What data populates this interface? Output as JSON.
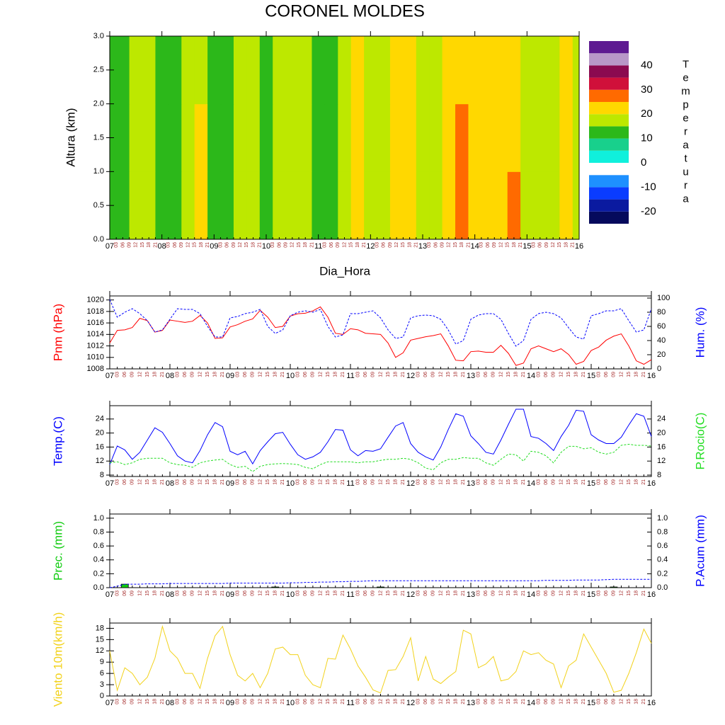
{
  "time_axis": {
    "xlim": [
      0,
      216
    ],
    "x": [
      0,
      3,
      6,
      9,
      12,
      15,
      18,
      21,
      24,
      27,
      30,
      33,
      36,
      39,
      42,
      45,
      48,
      51,
      54,
      57,
      60,
      63,
      66,
      69,
      72,
      75,
      78,
      81,
      84,
      87,
      90,
      93,
      96,
      99,
      102,
      105,
      108,
      111,
      114,
      117,
      120,
      123,
      126,
      129,
      132,
      135,
      138,
      141,
      144,
      147,
      150,
      153,
      156,
      159,
      162,
      165,
      168,
      171,
      174,
      177,
      180,
      183,
      186,
      189,
      192,
      195,
      198,
      201,
      204,
      207,
      210,
      213,
      216
    ],
    "xticks": [
      {
        "value": 0,
        "label": "07"
      },
      {
        "value": 24,
        "label": "08"
      },
      {
        "value": 48,
        "label": "09"
      },
      {
        "value": 72,
        "label": "10"
      },
      {
        "value": 96,
        "label": "11"
      },
      {
        "value": 120,
        "label": "12"
      },
      {
        "value": 144,
        "label": "13"
      },
      {
        "value": 168,
        "label": "14"
      },
      {
        "value": 192,
        "label": "15"
      },
      {
        "value": 216,
        "label": "16"
      }
    ],
    "minor_ticks": [
      {
        "value": 3,
        "label": "03"
      },
      {
        "value": 6,
        "label": "06"
      },
      {
        "value": 9,
        "label": "09"
      },
      {
        "value": 12,
        "label": "12"
      },
      {
        "value": 15,
        "label": "15"
      },
      {
        "value": 18,
        "label": "18"
      },
      {
        "value": 21,
        "label": "21"
      }
    ]
  },
  "chart_data": [
    {
      "type": "contour",
      "title": "CORONEL MOLDES",
      "xlabel": "Dia_Hora",
      "ylabel": "Altura (km)",
      "x": [
        0,
        6,
        12,
        18,
        24,
        30,
        36,
        42,
        48,
        54,
        60,
        66,
        72,
        78,
        84,
        90,
        96,
        102,
        108,
        114,
        120,
        126,
        132,
        138,
        144,
        150,
        156,
        162,
        168,
        174,
        180,
        186,
        192,
        198,
        204,
        210,
        216
      ],
      "y": [
        0.5,
        1.5,
        2.5
      ],
      "z": [
        [
          12,
          13,
          17,
          18,
          13,
          12,
          17,
          21,
          14,
          12,
          16,
          18,
          12,
          16,
          18,
          19,
          14,
          12,
          17,
          21,
          18,
          17,
          21,
          22,
          18,
          19,
          22,
          27,
          23,
          21,
          22,
          26,
          18,
          17,
          19,
          22,
          17
        ],
        [
          12,
          13,
          16.5,
          17.5,
          13,
          12,
          17,
          20.5,
          13.5,
          12,
          16,
          17.5,
          12,
          15.5,
          17.5,
          18,
          13.5,
          12,
          17,
          21,
          18,
          17,
          21,
          21.5,
          17.5,
          19,
          22,
          25.5,
          22,
          21,
          21.5,
          24,
          18,
          17,
          19,
          21,
          17
        ],
        [
          12,
          14,
          16,
          17,
          12.5,
          12,
          16.5,
          19,
          13,
          12,
          15.5,
          17,
          12,
          15,
          17,
          17.5,
          13,
          12.5,
          17,
          20,
          17.5,
          17,
          21,
          21,
          17.5,
          19,
          22,
          23,
          21.5,
          21,
          21,
          22,
          18,
          17,
          19,
          20.5,
          17
        ]
      ],
      "ylim": [
        0,
        3
      ],
      "yticks": [
        {
          "value": 0,
          "label": "0.0"
        },
        {
          "value": 0.5,
          "label": "0.5"
        },
        {
          "value": 1,
          "label": "1.0"
        },
        {
          "value": 1.5,
          "label": "1.5"
        },
        {
          "value": 2,
          "label": "2.0"
        },
        {
          "value": 2.5,
          "label": "2.5"
        },
        {
          "value": 3,
          "label": "3.0"
        }
      ],
      "levels": [
        -25,
        -20,
        -15,
        -10,
        -5,
        0,
        5,
        10,
        15,
        20,
        25,
        30,
        35,
        40,
        45,
        50
      ],
      "colors": [
        "#050a5c",
        "#0a1aa0",
        "#0a3cff",
        "#1e90ff",
        "#ffffff",
        "#10f0dc",
        "#18d08c",
        "#2cb81a",
        "#bde800",
        "#ffd800",
        "#ff6a00",
        "#d0103a",
        "#8b0a50",
        "#b898c8",
        "#5e1a91"
      ],
      "colorbar_ticks": [
        -20,
        -10,
        0,
        10,
        20,
        30,
        40
      ],
      "colorbar_label": "Temperatura"
    },
    {
      "type": "line",
      "ylim": [
        1008,
        1020.7
      ],
      "yticks": [
        1008,
        1010,
        1012,
        1014,
        1016,
        1018,
        1020
      ],
      "y2lim": [
        0,
        103
      ],
      "y2ticks": [
        0,
        20,
        40,
        60,
        80,
        100
      ],
      "series": [
        {
          "name": "Pnm (hPa)",
          "color": "#ff0000",
          "values": [
            1012.5,
            1014.7,
            1014.8,
            1015.2,
            1016.8,
            1016.4,
            1014.4,
            1014.7,
            1016.5,
            1016.3,
            1016.1,
            1016.3,
            1017.3,
            1016,
            1013.3,
            1013.4,
            1015.3,
            1015.7,
            1016.3,
            1016.7,
            1018.2,
            1017,
            1015.2,
            1015.4,
            1017.2,
            1017.6,
            1017.7,
            1018.1,
            1018.8,
            1017,
            1014.2,
            1014,
            1015,
            1014.8,
            1014.2,
            1014.1,
            1014,
            1012.5,
            1010,
            1010.8,
            1013,
            1013.3,
            1013.6,
            1013.8,
            1014.1,
            1012,
            1009.5,
            1009.4,
            1011,
            1011.1,
            1010.9,
            1010.9,
            1012.1,
            1010.7,
            1008.6,
            1009,
            1011.5,
            1012,
            1011.5,
            1011,
            1011.5,
            1010.5,
            1008.8,
            1009.3,
            1011.2,
            1011.8,
            1013,
            1013.7,
            1014.1,
            1012,
            1009.4,
            1008.8,
            1009.6
          ]
        },
        {
          "name": "Hum. (%)",
          "color": "#0000ff",
          "dash": true,
          "axis": "y2",
          "values": [
            98,
            73,
            80,
            85,
            78,
            68,
            52,
            55,
            70,
            85,
            84,
            84,
            78,
            60,
            45,
            45,
            72,
            74,
            78,
            80,
            84,
            60,
            50,
            55,
            75,
            80,
            82,
            80,
            84,
            60,
            45,
            48,
            78,
            78,
            80,
            82,
            72,
            55,
            43,
            45,
            72,
            75,
            76,
            75,
            70,
            55,
            35,
            40,
            70,
            76,
            78,
            78,
            70,
            50,
            32,
            40,
            70,
            78,
            80,
            78,
            72,
            58,
            45,
            42,
            75,
            78,
            82,
            82,
            85,
            68,
            52,
            55,
            85
          ]
        }
      ]
    },
    {
      "type": "line",
      "ylim": [
        7.6,
        27.8
      ],
      "yticks": [
        8,
        12,
        16,
        20,
        24
      ],
      "y2lim": [
        7.6,
        27.8
      ],
      "y2ticks": [
        8,
        12,
        16,
        20,
        24
      ],
      "series": [
        {
          "name": "Temp.(C)",
          "color": "#0000ff",
          "values": [
            11,
            16.3,
            15.2,
            12.5,
            14.5,
            18,
            21.5,
            20.2,
            17,
            13.5,
            12,
            11.5,
            15,
            19.5,
            23,
            21.8,
            14.8,
            13.8,
            14.8,
            11.2,
            15,
            17.5,
            19.8,
            20.2,
            16.8,
            13.8,
            12.5,
            13.2,
            14.5,
            17.5,
            21,
            20.8,
            15.2,
            13.5,
            15,
            14.8,
            15.5,
            18.8,
            22,
            23,
            17,
            14.5,
            13.2,
            12.3,
            16,
            21,
            25.5,
            24.8,
            19.2,
            17,
            14.5,
            14,
            18,
            22.5,
            26.8,
            26.8,
            19,
            18.5,
            17,
            15,
            19,
            22.2,
            26.5,
            26.2,
            19.5,
            18,
            17,
            17,
            18.8,
            22.3,
            25.5,
            24.8,
            19
          ]
        },
        {
          "name": "P.Rocio(C)",
          "color": "#22dd22",
          "dash": true,
          "axis": "y2",
          "values": [
            11.5,
            11.8,
            11,
            11.5,
            12.5,
            12.8,
            12.8,
            12.8,
            11.5,
            11,
            10.8,
            10.2,
            11.5,
            12,
            12.3,
            12.5,
            11,
            10.2,
            10.5,
            9,
            10.5,
            11,
            11.2,
            11.3,
            11.2,
            11,
            10.2,
            9.8,
            11,
            11.8,
            11.8,
            11.8,
            11.8,
            11.5,
            11.8,
            11.8,
            12.2,
            12.5,
            12.5,
            12.8,
            12.5,
            11.5,
            10,
            9.5,
            11.5,
            12.5,
            12.5,
            13,
            12.8,
            12.8,
            11.5,
            10.8,
            12.5,
            14,
            13.8,
            12,
            14.8,
            14.5,
            13.5,
            11.5,
            14.5,
            16.2,
            16.2,
            15.5,
            15.8,
            14.5,
            14,
            14.5,
            16.5,
            16.8,
            16.5,
            16.5,
            16.3
          ]
        }
      ]
    },
    {
      "type": "bar",
      "ylim": [
        0,
        1.06
      ],
      "yticks": [
        {
          "value": 0,
          "label": "0.0"
        },
        {
          "value": 0.2,
          "label": "0.2"
        },
        {
          "value": 0.4,
          "label": "0.4"
        },
        {
          "value": 0.6,
          "label": "0.6"
        },
        {
          "value": 0.8,
          "label": "0.8"
        },
        {
          "value": 1,
          "label": "1.0"
        }
      ],
      "y2lim": [
        0,
        1.06
      ],
      "y2ticks": [
        {
          "value": 0,
          "label": "0.0"
        },
        {
          "value": 0.2,
          "label": "0.2"
        },
        {
          "value": 0.4,
          "label": "0.4"
        },
        {
          "value": 0.6,
          "label": "0.6"
        },
        {
          "value": 0.8,
          "label": "0.8"
        },
        {
          "value": 1,
          "label": "1.0"
        }
      ],
      "series": [
        {
          "name": "Prec. (mm)",
          "color": "#11cc11",
          "type": "bar",
          "values": [
            0,
            0,
            0.05,
            0,
            0,
            0,
            0,
            0,
            0,
            0,
            0,
            0,
            0,
            0,
            0,
            0,
            0,
            0,
            0,
            0,
            0,
            0,
            0.01,
            0,
            0,
            0,
            0,
            0,
            0,
            0,
            0,
            0,
            0,
            0,
            0,
            0,
            0.01,
            0,
            0,
            0,
            0,
            0,
            0,
            0,
            0,
            0,
            0,
            0,
            0,
            0,
            0,
            0,
            0,
            0,
            0,
            0,
            0,
            0,
            0,
            0,
            0,
            0,
            0,
            0,
            0,
            0,
            0,
            0.01,
            0,
            0,
            0,
            0,
            0
          ]
        },
        {
          "name": "P.Acum (mm)",
          "color": "#0000ff",
          "type": "line",
          "dash": true,
          "axis": "y2",
          "values": [
            0,
            0.02,
            0.05,
            0.05,
            0.05,
            0.055,
            0.055,
            0.055,
            0.06,
            0.06,
            0.06,
            0.06,
            0.06,
            0.06,
            0.06,
            0.06,
            0.065,
            0.065,
            0.065,
            0.065,
            0.065,
            0.065,
            0.065,
            0.065,
            0.07,
            0.07,
            0.075,
            0.075,
            0.08,
            0.08,
            0.085,
            0.085,
            0.09,
            0.09,
            0.095,
            0.1,
            0.1,
            0.1,
            0.1,
            0.1,
            0.1,
            0.1,
            0.1,
            0.1,
            0.1,
            0.1,
            0.1,
            0.1,
            0.1,
            0.1,
            0.1,
            0.1,
            0.1,
            0.1,
            0.1,
            0.1,
            0.1,
            0.1,
            0.105,
            0.105,
            0.105,
            0.105,
            0.11,
            0.11,
            0.11,
            0.11,
            0.115,
            0.12,
            0.12,
            0.12,
            0.12,
            0.12,
            0.12
          ]
        }
      ]
    },
    {
      "type": "line",
      "ylim": [
        0,
        19.4
      ],
      "yticks": [
        0,
        3,
        6,
        9,
        12,
        15,
        18
      ],
      "series": [
        {
          "name": "Viento 10m(km/h)",
          "color": "#f2d21b",
          "values": [
            12,
            1.5,
            7.5,
            6,
            3,
            5,
            10,
            18.5,
            12,
            10,
            6,
            6,
            2,
            10,
            16,
            18.5,
            11,
            5.5,
            4,
            6,
            2.2,
            6,
            12.5,
            13,
            11,
            11,
            5.5,
            3,
            2.2,
            10,
            9.8,
            16.2,
            12.5,
            8,
            5,
            1.6,
            0.8,
            6.8,
            7,
            10.5,
            15.5,
            4,
            10.5,
            4.5,
            3.3,
            5,
            6.5,
            17.5,
            16.5,
            7.5,
            8.5,
            10.5,
            4,
            4.5,
            6.5,
            12,
            11,
            11.5,
            9.5,
            8.5,
            2.2,
            8,
            9.5,
            16.5,
            13,
            9.5,
            6,
            1,
            1.5,
            6,
            11.5,
            17.8,
            14
          ]
        }
      ]
    }
  ]
}
